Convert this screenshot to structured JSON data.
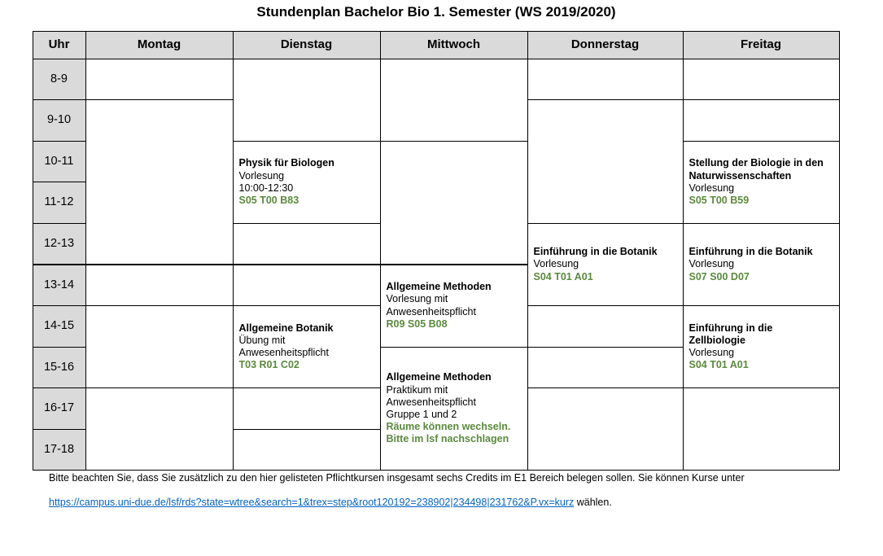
{
  "title": "Stundenplan Bachelor Bio 1. Semester (WS 2019/2020)",
  "hour_header": "Uhr",
  "hours": [
    "8-9",
    "9-10",
    "10-11",
    "11-12",
    "12-13",
    "13-14",
    "14-15",
    "15-16",
    "16-17",
    "17-18"
  ],
  "colors": {
    "header_bg": "#dadada",
    "room": "#5a8a3c",
    "link": "#0563c1"
  },
  "days": [
    {
      "name": "Montag",
      "blocks": [
        {
          "from": 8,
          "to": 9,
          "lines": []
        },
        {
          "from": 9,
          "to": 13,
          "lines": []
        },
        {
          "from": 13,
          "to": 14,
          "lines": []
        },
        {
          "from": 14,
          "to": 16,
          "lines": []
        },
        {
          "from": 16,
          "to": 18,
          "lines": []
        }
      ]
    },
    {
      "name": "Dienstag",
      "blocks": [
        {
          "from": 8,
          "to": 10,
          "lines": []
        },
        {
          "from": 10,
          "to": 12,
          "lines": [
            {
              "text": "Physik für Biologen",
              "style": "b"
            },
            {
              "text": "Vorlesung",
              "style": ""
            },
            {
              "text": "10:00-12:30",
              "style": ""
            },
            {
              "text": "S05 T00 B83",
              "style": "g"
            }
          ]
        },
        {
          "from": 12,
          "to": 13,
          "lines": []
        },
        {
          "from": 13,
          "to": 14,
          "lines": []
        },
        {
          "from": 14,
          "to": 16,
          "lines": [
            {
              "text": "Allgemeine Botanik",
              "style": "b"
            },
            {
              "text": "Übung mit",
              "style": ""
            },
            {
              "text": "Anwesenheitspflicht",
              "style": ""
            },
            {
              "text": "T03 R01 C02",
              "style": "g"
            }
          ]
        },
        {
          "from": 16,
          "to": 17,
          "lines": []
        },
        {
          "from": 17,
          "to": 18,
          "lines": []
        }
      ]
    },
    {
      "name": "Mittwoch",
      "blocks": [
        {
          "from": 8,
          "to": 10,
          "lines": []
        },
        {
          "from": 10,
          "to": 13,
          "lines": []
        },
        {
          "from": 13,
          "to": 15,
          "lines": [
            {
              "text": "Allgemeine Methoden",
              "style": "b"
            },
            {
              "text": "Vorlesung mit",
              "style": ""
            },
            {
              "text": "Anwesenheitspflicht",
              "style": ""
            },
            {
              "text": "R09 S05 B08",
              "style": "g"
            }
          ]
        },
        {
          "from": 15,
          "to": 18,
          "lines": [
            {
              "text": "Allgemeine Methoden",
              "style": "b"
            },
            {
              "text": "Praktikum mit",
              "style": ""
            },
            {
              "text": "Anwesenheitspflicht",
              "style": ""
            },
            {
              "text": "Gruppe 1 und 2",
              "style": ""
            },
            {
              "text": "Räume können wechseln.",
              "style": "g"
            },
            {
              "text": "Bitte im lsf nachschlagen",
              "style": "g"
            }
          ]
        }
      ]
    },
    {
      "name": "Donnerstag",
      "blocks": [
        {
          "from": 8,
          "to": 9,
          "lines": []
        },
        {
          "from": 9,
          "to": 12,
          "lines": []
        },
        {
          "from": 12,
          "to": 14,
          "lines": [
            {
              "text": "Einführung in die Botanik",
              "style": "b"
            },
            {
              "text": "Vorlesung",
              "style": ""
            },
            {
              "text": "S04 T01 A01",
              "style": "g"
            }
          ]
        },
        {
          "from": 14,
          "to": 15,
          "lines": []
        },
        {
          "from": 15,
          "to": 16,
          "lines": []
        },
        {
          "from": 16,
          "to": 18,
          "lines": []
        }
      ]
    },
    {
      "name": "Freitag",
      "blocks": [
        {
          "from": 8,
          "to": 9,
          "lines": []
        },
        {
          "from": 9,
          "to": 10,
          "lines": []
        },
        {
          "from": 10,
          "to": 12,
          "lines": [
            {
              "text": "Stellung der Biologie in den",
              "style": "b"
            },
            {
              "text": "Naturwissenschaften",
              "style": "b"
            },
            {
              "text": "Vorlesung",
              "style": ""
            },
            {
              "text": "S05 T00 B59",
              "style": "g"
            }
          ]
        },
        {
          "from": 12,
          "to": 14,
          "lines": [
            {
              "text": "Einführung in die Botanik",
              "style": "b"
            },
            {
              "text": "Vorlesung",
              "style": ""
            },
            {
              "text": "S07 S00 D07",
              "style": "g"
            }
          ]
        },
        {
          "from": 14,
          "to": 16,
          "lines": [
            {
              "text": "Einführung in die",
              "style": "b"
            },
            {
              "text": "Zellbiologie",
              "style": "b"
            },
            {
              "text": "Vorlesung",
              "style": ""
            },
            {
              "text": "S04 T01 A01",
              "style": "g"
            }
          ]
        },
        {
          "from": 16,
          "to": 18,
          "lines": []
        }
      ]
    }
  ],
  "footer": {
    "note": "Bitte beachten Sie, dass Sie zusätzlich zu den hier gelisteten Pflichtkursen insgesamt sechs Credits im E1 Bereich belegen sollen. Sie können Kurse unter",
    "link": "https://campus.uni-due.de/lsf/rds?state=wtree&search=1&trex=step&root120192=238902|234498|231762&P.vx=kurz",
    "after_link": " wählen."
  }
}
